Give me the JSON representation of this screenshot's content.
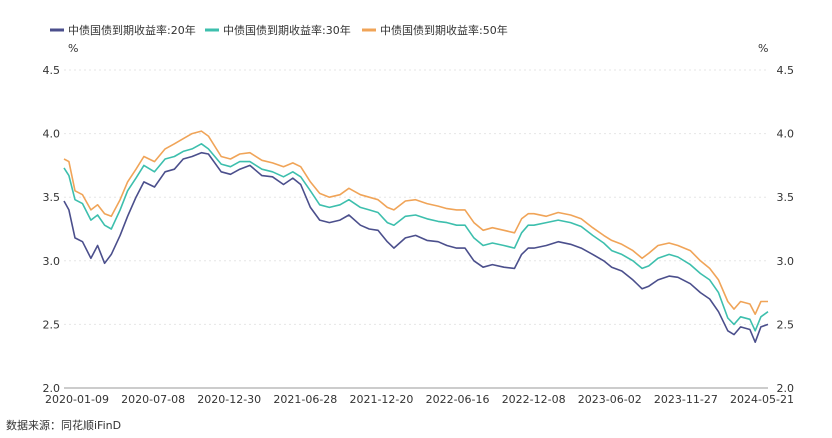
{
  "chart_data": {
    "type": "line",
    "title": "",
    "xlabel": "",
    "ylabel": "%",
    "ylabel_right": "%",
    "ylim": [
      2.0,
      4.5
    ],
    "yticks": [
      "2.0",
      "2.5",
      "3.0",
      "3.5",
      "4.0",
      "4.5"
    ],
    "x_tick_labels": [
      "2020-01-09",
      "2020-07-08",
      "2020-12-30",
      "2021-06-28",
      "2021-12-20",
      "2022-06-16",
      "2022-12-08",
      "2023-06-02",
      "2023-11-27",
      "2024-05-21"
    ],
    "x_range": [
      "2020-01-09",
      "2024-05-21"
    ],
    "grid": "horizontal",
    "legend_position": "top-left",
    "series": [
      {
        "name": "中债国债到期收益率:20年",
        "color": "#4b4f8c",
        "points": [
          [
            "2020-01-09",
            3.47
          ],
          [
            "2020-01-20",
            3.4
          ],
          [
            "2020-02-03",
            3.18
          ],
          [
            "2020-02-20",
            3.15
          ],
          [
            "2020-03-10",
            3.02
          ],
          [
            "2020-03-25",
            3.12
          ],
          [
            "2020-04-10",
            2.98
          ],
          [
            "2020-04-25",
            3.05
          ],
          [
            "2020-05-15",
            3.2
          ],
          [
            "2020-06-01",
            3.35
          ],
          [
            "2020-06-20",
            3.5
          ],
          [
            "2020-07-08",
            3.62
          ],
          [
            "2020-08-01",
            3.58
          ],
          [
            "2020-08-25",
            3.7
          ],
          [
            "2020-09-15",
            3.72
          ],
          [
            "2020-10-05",
            3.8
          ],
          [
            "2020-10-25",
            3.82
          ],
          [
            "2020-11-15",
            3.85
          ],
          [
            "2020-12-01",
            3.84
          ],
          [
            "2020-12-30",
            3.7
          ],
          [
            "2021-01-20",
            3.68
          ],
          [
            "2021-02-10",
            3.72
          ],
          [
            "2021-03-05",
            3.75
          ],
          [
            "2021-04-01",
            3.67
          ],
          [
            "2021-04-25",
            3.66
          ],
          [
            "2021-05-20",
            3.6
          ],
          [
            "2021-06-10",
            3.65
          ],
          [
            "2021-06-28",
            3.6
          ],
          [
            "2021-07-20",
            3.42
          ],
          [
            "2021-08-10",
            3.32
          ],
          [
            "2021-09-01",
            3.3
          ],
          [
            "2021-09-25",
            3.32
          ],
          [
            "2021-10-15",
            3.36
          ],
          [
            "2021-11-10",
            3.28
          ],
          [
            "2021-11-30",
            3.25
          ],
          [
            "2021-12-20",
            3.24
          ],
          [
            "2022-01-10",
            3.15
          ],
          [
            "2022-01-25",
            3.1
          ],
          [
            "2022-02-20",
            3.18
          ],
          [
            "2022-03-15",
            3.2
          ],
          [
            "2022-04-10",
            3.16
          ],
          [
            "2022-05-05",
            3.15
          ],
          [
            "2022-05-25",
            3.12
          ],
          [
            "2022-06-16",
            3.1
          ],
          [
            "2022-07-05",
            3.1
          ],
          [
            "2022-07-25",
            3.0
          ],
          [
            "2022-08-15",
            2.95
          ],
          [
            "2022-09-05",
            2.97
          ],
          [
            "2022-10-01",
            2.95
          ],
          [
            "2022-10-25",
            2.94
          ],
          [
            "2022-11-10",
            3.05
          ],
          [
            "2022-11-25",
            3.1
          ],
          [
            "2022-12-08",
            3.1
          ],
          [
            "2023-01-05",
            3.12
          ],
          [
            "2023-02-01",
            3.15
          ],
          [
            "2023-03-01",
            3.13
          ],
          [
            "2023-03-25",
            3.1
          ],
          [
            "2023-04-20",
            3.05
          ],
          [
            "2023-05-15",
            3.0
          ],
          [
            "2023-06-02",
            2.95
          ],
          [
            "2023-06-25",
            2.92
          ],
          [
            "2023-07-20",
            2.85
          ],
          [
            "2023-08-10",
            2.78
          ],
          [
            "2023-08-25",
            2.8
          ],
          [
            "2023-09-15",
            2.85
          ],
          [
            "2023-10-10",
            2.88
          ],
          [
            "2023-10-30",
            2.87
          ],
          [
            "2023-11-27",
            2.82
          ],
          [
            "2023-12-20",
            2.75
          ],
          [
            "2024-01-10",
            2.7
          ],
          [
            "2024-01-30",
            2.6
          ],
          [
            "2024-02-20",
            2.45
          ],
          [
            "2024-03-05",
            2.42
          ],
          [
            "2024-03-20",
            2.48
          ],
          [
            "2024-04-10",
            2.46
          ],
          [
            "2024-04-22",
            2.36
          ],
          [
            "2024-05-05",
            2.48
          ],
          [
            "2024-05-21",
            2.5
          ]
        ]
      },
      {
        "name": "中债国债到期收益率:30年",
        "color": "#3dbfad",
        "points": [
          [
            "2020-01-09",
            3.73
          ],
          [
            "2020-01-20",
            3.67
          ],
          [
            "2020-02-03",
            3.48
          ],
          [
            "2020-02-20",
            3.45
          ],
          [
            "2020-03-10",
            3.32
          ],
          [
            "2020-03-25",
            3.36
          ],
          [
            "2020-04-10",
            3.28
          ],
          [
            "2020-04-25",
            3.25
          ],
          [
            "2020-05-15",
            3.4
          ],
          [
            "2020-06-01",
            3.55
          ],
          [
            "2020-06-20",
            3.65
          ],
          [
            "2020-07-08",
            3.75
          ],
          [
            "2020-08-01",
            3.7
          ],
          [
            "2020-08-25",
            3.8
          ],
          [
            "2020-09-15",
            3.82
          ],
          [
            "2020-10-05",
            3.86
          ],
          [
            "2020-10-25",
            3.88
          ],
          [
            "2020-11-15",
            3.92
          ],
          [
            "2020-12-01",
            3.88
          ],
          [
            "2020-12-30",
            3.76
          ],
          [
            "2021-01-20",
            3.74
          ],
          [
            "2021-02-10",
            3.78
          ],
          [
            "2021-03-05",
            3.78
          ],
          [
            "2021-04-01",
            3.72
          ],
          [
            "2021-04-25",
            3.7
          ],
          [
            "2021-05-20",
            3.66
          ],
          [
            "2021-06-10",
            3.7
          ],
          [
            "2021-06-28",
            3.66
          ],
          [
            "2021-07-20",
            3.55
          ],
          [
            "2021-08-10",
            3.44
          ],
          [
            "2021-09-01",
            3.42
          ],
          [
            "2021-09-25",
            3.44
          ],
          [
            "2021-10-15",
            3.48
          ],
          [
            "2021-11-10",
            3.42
          ],
          [
            "2021-11-30",
            3.4
          ],
          [
            "2021-12-20",
            3.38
          ],
          [
            "2022-01-10",
            3.3
          ],
          [
            "2022-01-25",
            3.28
          ],
          [
            "2022-02-20",
            3.35
          ],
          [
            "2022-03-15",
            3.36
          ],
          [
            "2022-04-10",
            3.33
          ],
          [
            "2022-05-05",
            3.31
          ],
          [
            "2022-05-25",
            3.3
          ],
          [
            "2022-06-16",
            3.28
          ],
          [
            "2022-07-05",
            3.28
          ],
          [
            "2022-07-25",
            3.18
          ],
          [
            "2022-08-15",
            3.12
          ],
          [
            "2022-09-05",
            3.14
          ],
          [
            "2022-10-01",
            3.12
          ],
          [
            "2022-10-25",
            3.1
          ],
          [
            "2022-11-10",
            3.22
          ],
          [
            "2022-11-25",
            3.28
          ],
          [
            "2022-12-08",
            3.28
          ],
          [
            "2023-01-05",
            3.3
          ],
          [
            "2023-02-01",
            3.32
          ],
          [
            "2023-03-01",
            3.3
          ],
          [
            "2023-03-25",
            3.27
          ],
          [
            "2023-04-20",
            3.2
          ],
          [
            "2023-05-15",
            3.14
          ],
          [
            "2023-06-02",
            3.08
          ],
          [
            "2023-06-25",
            3.05
          ],
          [
            "2023-07-20",
            3.0
          ],
          [
            "2023-08-10",
            2.94
          ],
          [
            "2023-08-25",
            2.96
          ],
          [
            "2023-09-15",
            3.02
          ],
          [
            "2023-10-10",
            3.05
          ],
          [
            "2023-10-30",
            3.03
          ],
          [
            "2023-11-27",
            2.97
          ],
          [
            "2023-12-20",
            2.9
          ],
          [
            "2024-01-10",
            2.85
          ],
          [
            "2024-01-30",
            2.75
          ],
          [
            "2024-02-20",
            2.55
          ],
          [
            "2024-03-05",
            2.5
          ],
          [
            "2024-03-20",
            2.56
          ],
          [
            "2024-04-10",
            2.54
          ],
          [
            "2024-04-22",
            2.45
          ],
          [
            "2024-05-05",
            2.56
          ],
          [
            "2024-05-21",
            2.6
          ]
        ]
      },
      {
        "name": "中债国债到期收益率:50年",
        "color": "#f0a458",
        "points": [
          [
            "2020-01-09",
            3.8
          ],
          [
            "2020-01-20",
            3.78
          ],
          [
            "2020-02-03",
            3.55
          ],
          [
            "2020-02-20",
            3.52
          ],
          [
            "2020-03-10",
            3.4
          ],
          [
            "2020-03-25",
            3.44
          ],
          [
            "2020-04-10",
            3.37
          ],
          [
            "2020-04-25",
            3.35
          ],
          [
            "2020-05-15",
            3.48
          ],
          [
            "2020-06-01",
            3.62
          ],
          [
            "2020-06-20",
            3.72
          ],
          [
            "2020-07-08",
            3.82
          ],
          [
            "2020-08-01",
            3.78
          ],
          [
            "2020-08-25",
            3.88
          ],
          [
            "2020-09-15",
            3.92
          ],
          [
            "2020-10-05",
            3.96
          ],
          [
            "2020-10-25",
            4.0
          ],
          [
            "2020-11-15",
            4.02
          ],
          [
            "2020-12-01",
            3.98
          ],
          [
            "2020-12-30",
            3.82
          ],
          [
            "2021-01-20",
            3.8
          ],
          [
            "2021-02-10",
            3.84
          ],
          [
            "2021-03-05",
            3.85
          ],
          [
            "2021-04-01",
            3.79
          ],
          [
            "2021-04-25",
            3.77
          ],
          [
            "2021-05-20",
            3.74
          ],
          [
            "2021-06-10",
            3.77
          ],
          [
            "2021-06-28",
            3.74
          ],
          [
            "2021-07-20",
            3.62
          ],
          [
            "2021-08-10",
            3.53
          ],
          [
            "2021-09-01",
            3.5
          ],
          [
            "2021-09-25",
            3.52
          ],
          [
            "2021-10-15",
            3.57
          ],
          [
            "2021-11-10",
            3.52
          ],
          [
            "2021-11-30",
            3.5
          ],
          [
            "2021-12-20",
            3.48
          ],
          [
            "2022-01-10",
            3.42
          ],
          [
            "2022-01-25",
            3.4
          ],
          [
            "2022-02-20",
            3.47
          ],
          [
            "2022-03-15",
            3.48
          ],
          [
            "2022-04-10",
            3.45
          ],
          [
            "2022-05-05",
            3.43
          ],
          [
            "2022-05-25",
            3.41
          ],
          [
            "2022-06-16",
            3.4
          ],
          [
            "2022-07-05",
            3.4
          ],
          [
            "2022-07-25",
            3.3
          ],
          [
            "2022-08-15",
            3.24
          ],
          [
            "2022-09-05",
            3.26
          ],
          [
            "2022-10-01",
            3.24
          ],
          [
            "2022-10-25",
            3.22
          ],
          [
            "2022-11-10",
            3.33
          ],
          [
            "2022-11-25",
            3.37
          ],
          [
            "2022-12-08",
            3.37
          ],
          [
            "2023-01-05",
            3.35
          ],
          [
            "2023-02-01",
            3.38
          ],
          [
            "2023-03-01",
            3.36
          ],
          [
            "2023-03-25",
            3.33
          ],
          [
            "2023-04-20",
            3.26
          ],
          [
            "2023-05-15",
            3.2
          ],
          [
            "2023-06-02",
            3.16
          ],
          [
            "2023-06-25",
            3.13
          ],
          [
            "2023-07-20",
            3.08
          ],
          [
            "2023-08-10",
            3.02
          ],
          [
            "2023-08-25",
            3.06
          ],
          [
            "2023-09-15",
            3.12
          ],
          [
            "2023-10-10",
            3.14
          ],
          [
            "2023-10-30",
            3.12
          ],
          [
            "2023-11-27",
            3.08
          ],
          [
            "2023-12-20",
            3.0
          ],
          [
            "2024-01-10",
            2.94
          ],
          [
            "2024-01-30",
            2.85
          ],
          [
            "2024-02-20",
            2.68
          ],
          [
            "2024-03-05",
            2.62
          ],
          [
            "2024-03-20",
            2.68
          ],
          [
            "2024-04-10",
            2.66
          ],
          [
            "2024-04-22",
            2.58
          ],
          [
            "2024-05-05",
            2.68
          ],
          [
            "2024-05-21",
            2.68
          ]
        ]
      }
    ]
  },
  "source_text": "数据来源：同花顺iFinD"
}
